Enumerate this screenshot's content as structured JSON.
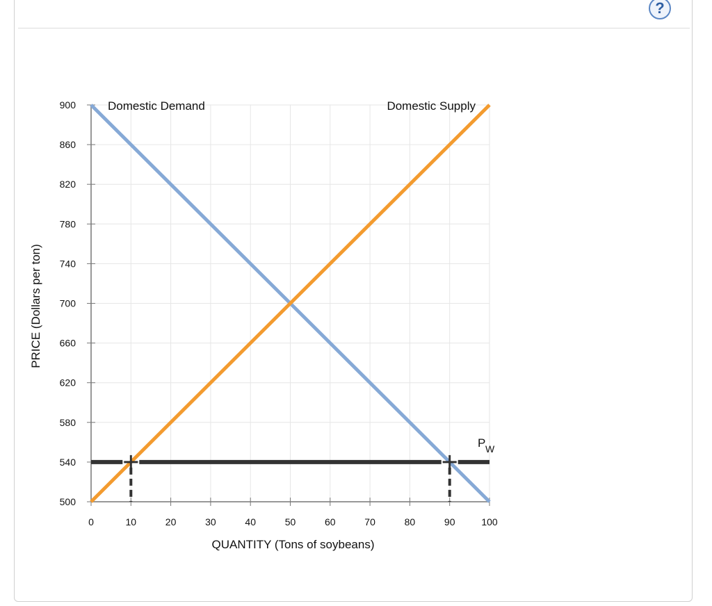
{
  "help": {
    "glyph": "?",
    "icon": "help-question-icon"
  },
  "chart_data": {
    "type": "line",
    "xlabel": "QUANTITY (Tons of soybeans)",
    "ylabel": "PRICE (Dollars per ton)",
    "xlim": [
      0,
      100
    ],
    "ylim": [
      500,
      900
    ],
    "x_ticks": [
      0,
      10,
      20,
      30,
      40,
      50,
      60,
      70,
      80,
      90,
      100
    ],
    "y_ticks": [
      500,
      540,
      580,
      620,
      660,
      700,
      740,
      780,
      820,
      860,
      900
    ],
    "grid": true,
    "series": [
      {
        "name": "Domestic Demand",
        "color": "#86a9d6",
        "x": [
          0,
          100
        ],
        "y": [
          900,
          500
        ]
      },
      {
        "name": "Domestic Supply",
        "color": "#f39b2f",
        "x": [
          0,
          100
        ],
        "y": [
          500,
          900
        ]
      }
    ],
    "world_price": {
      "label_main": "P",
      "label_sub": "W",
      "value": 540,
      "x": [
        0,
        100
      ],
      "color": "#333333"
    },
    "markers": [
      {
        "x": 10,
        "y": 540
      },
      {
        "x": 90,
        "y": 540
      }
    ]
  }
}
